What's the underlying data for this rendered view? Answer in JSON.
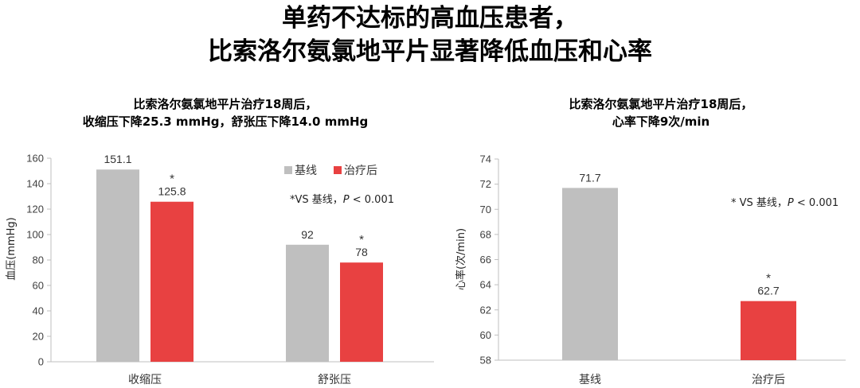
{
  "header": {
    "title_line1": "单药不达标的高血压患者，",
    "title_line2": "比索洛尔氨氯地平片显著降低血压和心率"
  },
  "colors": {
    "baseline": "#bfbfbf",
    "treatment": "#e84141"
  },
  "chart_data": [
    {
      "type": "bar",
      "title_line1": "比索洛尔氨氯地平片治疗18周后，",
      "title_line2": "收缩压下降25.3 mmHg，舒张压下降14.0 mmHg",
      "categories": [
        "收缩压",
        "舒张压"
      ],
      "series": [
        {
          "name": "基线",
          "values": [
            151.1,
            92
          ],
          "labels": [
            "151.1",
            "92"
          ],
          "color": "#bfbfbf"
        },
        {
          "name": "治疗后",
          "values": [
            125.8,
            78
          ],
          "labels": [
            "125.8",
            "78"
          ],
          "color": "#e84141",
          "marker": "*"
        }
      ],
      "ylabel": "血压(mmHg)",
      "ylim": [
        0,
        160
      ],
      "yticks": [
        0,
        20,
        40,
        60,
        80,
        100,
        120,
        140,
        160
      ],
      "note_prefix": "*VS 基线，",
      "note_p": "P",
      "note_suffix": " < 0.001",
      "legend": "top-right",
      "grid": false
    },
    {
      "type": "bar",
      "title_line1": "比索洛尔氨氯地平片治疗18周后，",
      "title_line2": "心率下降9次/min",
      "categories": [
        "基线",
        "治疗后"
      ],
      "values": [
        71.7,
        62.7
      ],
      "labels": [
        "71.7",
        "62.7"
      ],
      "colors": [
        "#bfbfbf",
        "#e84141"
      ],
      "markers": [
        "",
        "*"
      ],
      "ylabel": "心率(次/min)",
      "ylim": [
        58,
        74
      ],
      "yticks": [
        58,
        60,
        62,
        64,
        66,
        68,
        70,
        72,
        74
      ],
      "note_prefix": "* VS 基线，",
      "note_p": "P",
      "note_suffix": " < 0.001",
      "grid": false
    }
  ]
}
